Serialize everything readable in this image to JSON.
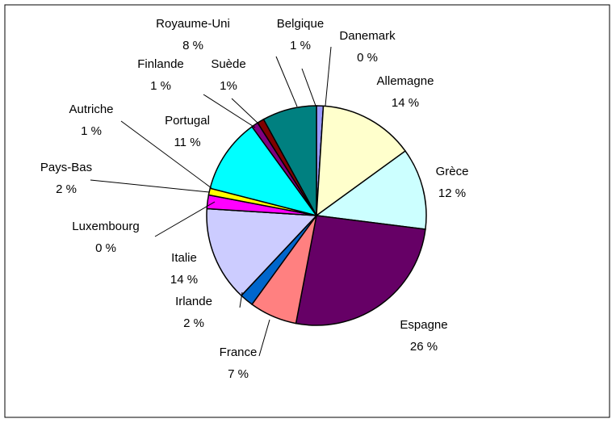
{
  "chart_data": {
    "type": "pie",
    "categories": [
      "Belgique",
      "Danemark",
      "Allemagne",
      "Grèce",
      "Espagne",
      "France",
      "Irlande",
      "Italie",
      "Luxembourg",
      "Pays-Bas",
      "Autriche",
      "Portugal",
      "Finlande",
      "Suède",
      "Royaume-Uni"
    ],
    "values": [
      1,
      0,
      14,
      12,
      26,
      7,
      2,
      14,
      0,
      2,
      1,
      11,
      1,
      1,
      8
    ],
    "value_labels": [
      "1 %",
      "0 %",
      "14 %",
      "12 %",
      "26 %",
      "7 %",
      "2 %",
      "14 %",
      "0 %",
      "2 %",
      "1 %",
      "11 %",
      "1 %",
      "1%",
      "8 %"
    ],
    "colors": [
      "#9999ff",
      "#3333cc",
      "#ffffcc",
      "#ccffff",
      "#660066",
      "#ff8080",
      "#0066cc",
      "#ccccff",
      "#000080",
      "#ff00ff",
      "#ffff00",
      "#00ffff",
      "#800080",
      "#800000",
      "#008080"
    ]
  }
}
